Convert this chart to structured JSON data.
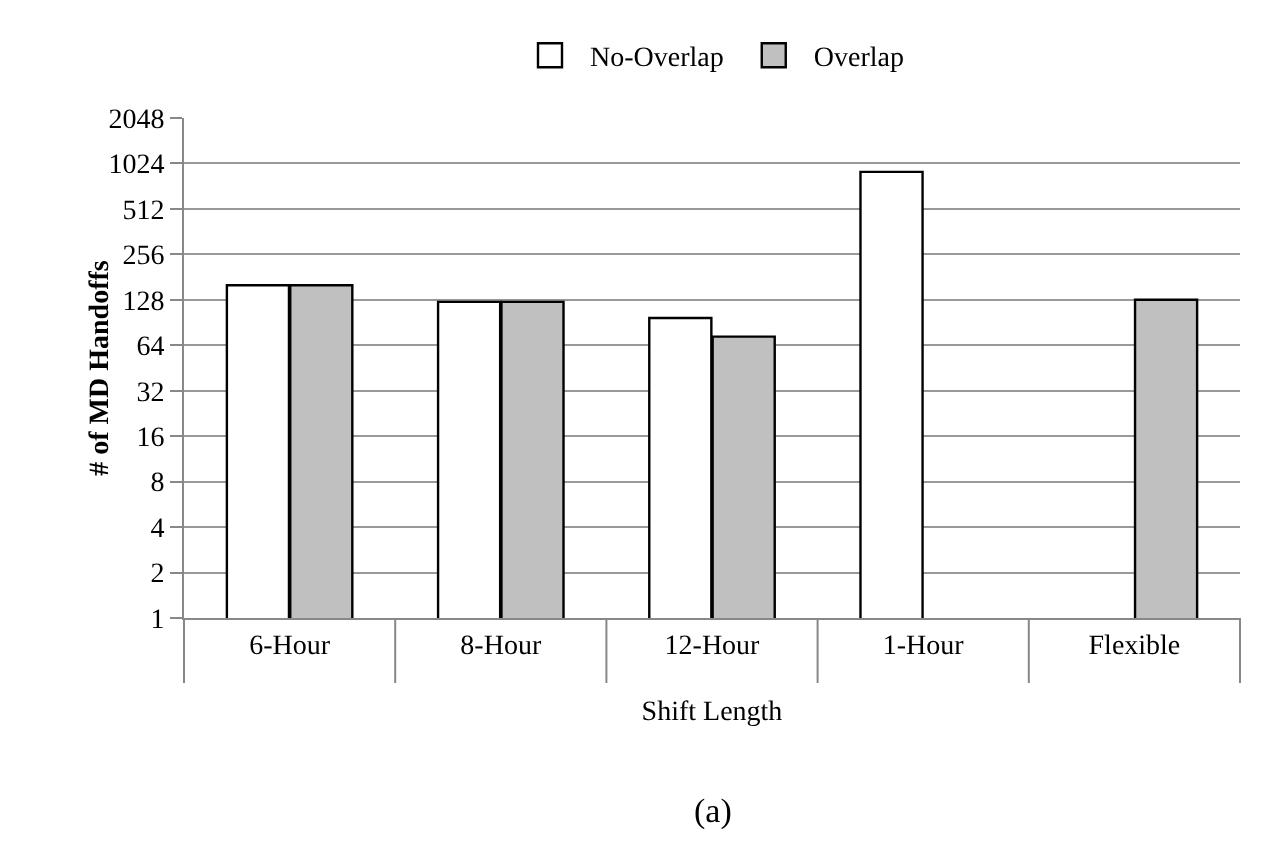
{
  "chart_data": {
    "type": "bar",
    "xlabel": "Shift Length",
    "ylabel": "# of MD Handoffs",
    "categories": [
      "6-Hour",
      "8-Hour",
      "12-Hour",
      "1-Hour",
      "Flexible"
    ],
    "series": [
      {
        "name": "No-Overlap",
        "color": "#ffffff",
        "values": [
          160,
          124,
          97,
          900,
          null
        ]
      },
      {
        "name": "Overlap",
        "color": "#c0c0c0",
        "values": [
          160,
          124,
          73,
          null,
          128
        ]
      }
    ],
    "log": true,
    "ylim": [
      1,
      2048
    ],
    "yticks": [
      1,
      2,
      4,
      8,
      16,
      32,
      64,
      128,
      256,
      512,
      1024,
      2048
    ],
    "grid": "y",
    "legend": "top",
    "annotations": [
      "(a)"
    ]
  }
}
